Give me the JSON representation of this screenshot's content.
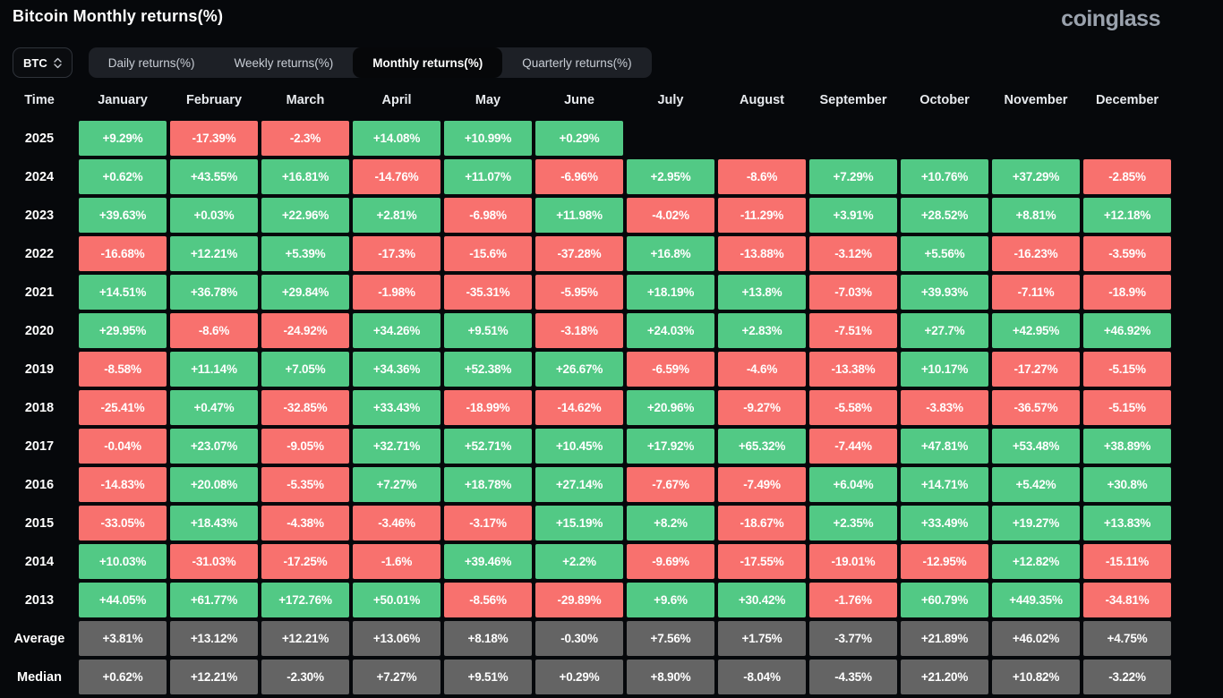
{
  "header": {
    "title": "Bitcoin Monthly returns(%)",
    "logo": "coinglass"
  },
  "controls": {
    "symbol_select": {
      "value": "BTC"
    },
    "tabs": [
      {
        "label": "Daily returns(%)",
        "active": false
      },
      {
        "label": "Weekly returns(%)",
        "active": false
      },
      {
        "label": "Monthly returns(%)",
        "active": true
      },
      {
        "label": "Quarterly returns(%)",
        "active": false
      }
    ]
  },
  "colors": {
    "positive": "#52c985",
    "negative": "#f8716e",
    "summary": "#646464",
    "background": "#06080b"
  },
  "table": {
    "corner_label": "Time",
    "columns": [
      "January",
      "February",
      "March",
      "April",
      "May",
      "June",
      "July",
      "August",
      "September",
      "October",
      "November",
      "December"
    ],
    "rows": [
      {
        "label": "2025",
        "type": "year",
        "values": [
          "+9.29%",
          "-17.39%",
          "-2.3%",
          "+14.08%",
          "+10.99%",
          "+0.29%",
          null,
          null,
          null,
          null,
          null,
          null
        ]
      },
      {
        "label": "2024",
        "type": "year",
        "values": [
          "+0.62%",
          "+43.55%",
          "+16.81%",
          "-14.76%",
          "+11.07%",
          "-6.96%",
          "+2.95%",
          "-8.6%",
          "+7.29%",
          "+10.76%",
          "+37.29%",
          "-2.85%"
        ]
      },
      {
        "label": "2023",
        "type": "year",
        "values": [
          "+39.63%",
          "+0.03%",
          "+22.96%",
          "+2.81%",
          "-6.98%",
          "+11.98%",
          "-4.02%",
          "-11.29%",
          "+3.91%",
          "+28.52%",
          "+8.81%",
          "+12.18%"
        ]
      },
      {
        "label": "2022",
        "type": "year",
        "values": [
          "-16.68%",
          "+12.21%",
          "+5.39%",
          "-17.3%",
          "-15.6%",
          "-37.28%",
          "+16.8%",
          "-13.88%",
          "-3.12%",
          "+5.56%",
          "-16.23%",
          "-3.59%"
        ]
      },
      {
        "label": "2021",
        "type": "year",
        "values": [
          "+14.51%",
          "+36.78%",
          "+29.84%",
          "-1.98%",
          "-35.31%",
          "-5.95%",
          "+18.19%",
          "+13.8%",
          "-7.03%",
          "+39.93%",
          "-7.11%",
          "-18.9%"
        ]
      },
      {
        "label": "2020",
        "type": "year",
        "values": [
          "+29.95%",
          "-8.6%",
          "-24.92%",
          "+34.26%",
          "+9.51%",
          "-3.18%",
          "+24.03%",
          "+2.83%",
          "-7.51%",
          "+27.7%",
          "+42.95%",
          "+46.92%"
        ]
      },
      {
        "label": "2019",
        "type": "year",
        "values": [
          "-8.58%",
          "+11.14%",
          "+7.05%",
          "+34.36%",
          "+52.38%",
          "+26.67%",
          "-6.59%",
          "-4.6%",
          "-13.38%",
          "+10.17%",
          "-17.27%",
          "-5.15%"
        ]
      },
      {
        "label": "2018",
        "type": "year",
        "values": [
          "-25.41%",
          "+0.47%",
          "-32.85%",
          "+33.43%",
          "-18.99%",
          "-14.62%",
          "+20.96%",
          "-9.27%",
          "-5.58%",
          "-3.83%",
          "-36.57%",
          "-5.15%"
        ]
      },
      {
        "label": "2017",
        "type": "year",
        "values": [
          "-0.04%",
          "+23.07%",
          "-9.05%",
          "+32.71%",
          "+52.71%",
          "+10.45%",
          "+17.92%",
          "+65.32%",
          "-7.44%",
          "+47.81%",
          "+53.48%",
          "+38.89%"
        ]
      },
      {
        "label": "2016",
        "type": "year",
        "values": [
          "-14.83%",
          "+20.08%",
          "-5.35%",
          "+7.27%",
          "+18.78%",
          "+27.14%",
          "-7.67%",
          "-7.49%",
          "+6.04%",
          "+14.71%",
          "+5.42%",
          "+30.8%"
        ]
      },
      {
        "label": "2015",
        "type": "year",
        "values": [
          "-33.05%",
          "+18.43%",
          "-4.38%",
          "-3.46%",
          "-3.17%",
          "+15.19%",
          "+8.2%",
          "-18.67%",
          "+2.35%",
          "+33.49%",
          "+19.27%",
          "+13.83%"
        ]
      },
      {
        "label": "2014",
        "type": "year",
        "values": [
          "+10.03%",
          "-31.03%",
          "-17.25%",
          "-1.6%",
          "+39.46%",
          "+2.2%",
          "-9.69%",
          "-17.55%",
          "-19.01%",
          "-12.95%",
          "+12.82%",
          "-15.11%"
        ]
      },
      {
        "label": "2013",
        "type": "year",
        "values": [
          "+44.05%",
          "+61.77%",
          "+172.76%",
          "+50.01%",
          "-8.56%",
          "-29.89%",
          "+9.6%",
          "+30.42%",
          "-1.76%",
          "+60.79%",
          "+449.35%",
          "-34.81%"
        ]
      },
      {
        "label": "Average",
        "type": "summary",
        "values": [
          "+3.81%",
          "+13.12%",
          "+12.21%",
          "+13.06%",
          "+8.18%",
          "-0.30%",
          "+7.56%",
          "+1.75%",
          "-3.77%",
          "+21.89%",
          "+46.02%",
          "+4.75%"
        ]
      },
      {
        "label": "Median",
        "type": "summary",
        "values": [
          "+0.62%",
          "+12.21%",
          "-2.30%",
          "+7.27%",
          "+9.51%",
          "+0.29%",
          "+8.90%",
          "-8.04%",
          "-4.35%",
          "+21.20%",
          "+10.82%",
          "-3.22%"
        ]
      }
    ]
  }
}
